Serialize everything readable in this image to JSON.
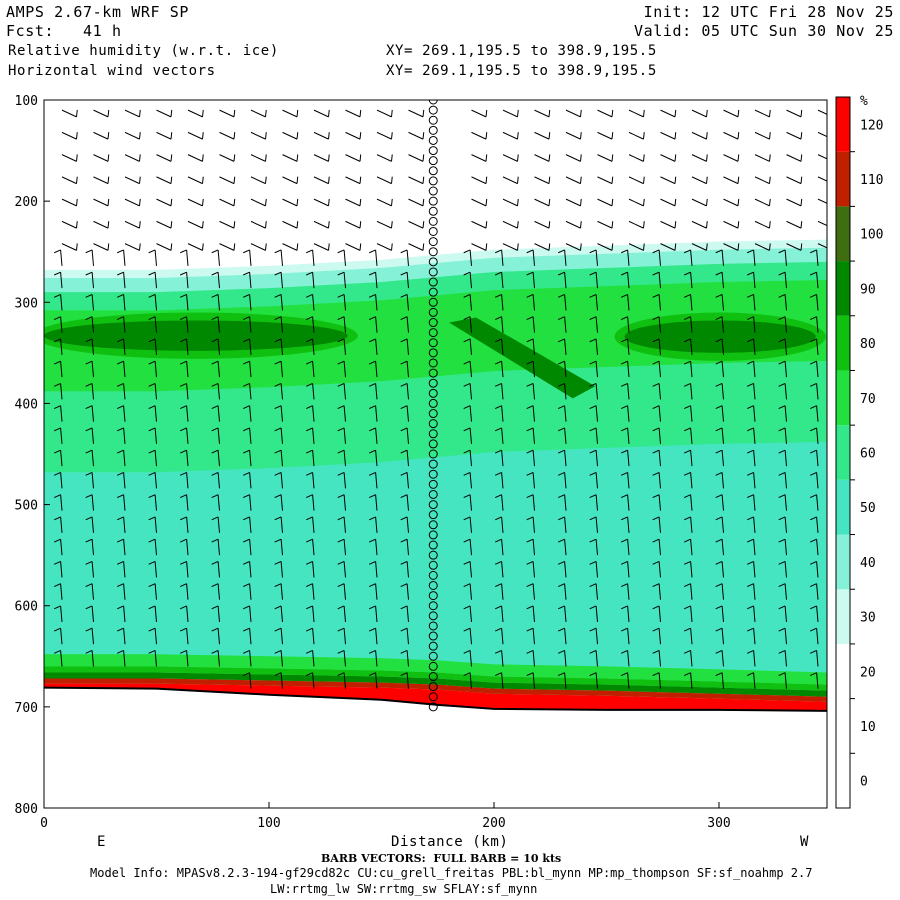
{
  "header": {
    "model": "AMPS 2.67-km WRF SP",
    "fcst": "Fcst:   41 h",
    "init": "Init: 12 UTC Fri 28 Nov 25",
    "valid": "Valid: 05 UTC Sun 30 Nov 25",
    "field1": "Relative humidity (w.r.t. ice)",
    "field2": "Horizontal wind vectors",
    "xy1": "XY= 269.1,195.5 to 398.9,195.5",
    "xy2": "XY= 269.1,195.5 to 398.9,195.5"
  },
  "footer": {
    "barb_note": "BARB VECTORS:  FULL BARB = 10 kts",
    "model_info": "Model Info: MPASv8.2.3-194-gf29cd82c CU:cu_grell_freitas PBL:bl_mynn MP:mp_thompson SF:sf_noahmp 2.7",
    "model_info2": "LW:rrtmg_lw SW:rrtmg_sw SFLAY:sf_mynn"
  },
  "chart_data": {
    "type": "heatmap",
    "title": "Relative humidity (w.r.t. ice)",
    "xlabel": "Distance (km)",
    "ylabel": "",
    "xlim": [
      0,
      348
    ],
    "ylim": [
      800,
      100
    ],
    "x_ticks": [
      0,
      100,
      200,
      300
    ],
    "y_ticks": [
      100,
      200,
      300,
      400,
      500,
      600,
      700,
      800
    ],
    "x_end_labels": {
      "left": "E",
      "right": "W"
    },
    "colorbar": {
      "unit": "%",
      "levels": [
        0,
        10,
        20,
        30,
        40,
        50,
        60,
        70,
        80,
        90,
        100,
        110,
        120
      ],
      "colors": [
        "#ffffff",
        "#ffffff",
        "#ffffff",
        "#ccfaf0",
        "#85f2d8",
        "#45e5c2",
        "#33e88a",
        "#22e040",
        "#10c010",
        "#008800",
        "#3e6e10",
        "#c02000",
        "#ff0000"
      ]
    },
    "terrain": {
      "x": [
        0,
        50,
        100,
        150,
        175,
        200,
        250,
        300,
        348
      ],
      "p": [
        681,
        682,
        688,
        693,
        698,
        702,
        703,
        703,
        704
      ]
    },
    "rh_layers": [
      {
        "name": "moist-layer-top",
        "level": 30,
        "p_top": [
          268,
          268,
          264,
          258,
          253,
          248,
          244,
          240,
          238
        ]
      },
      {
        "name": "upper-maximum-west",
        "level": 90,
        "x": [
          0,
          135
        ],
        "p": [
          318,
          348
        ]
      },
      {
        "name": "upper-maximum-east",
        "level": 90,
        "x": [
          258,
          343
        ],
        "p": [
          318,
          350
        ]
      },
      {
        "name": "diagonal-band",
        "level": 90,
        "x": [
          180,
          245
        ],
        "p": [
          320,
          395
        ]
      },
      {
        "name": "surface-moist-layer",
        "level": 120,
        "p_top": [
          660,
          660,
          662,
          664,
          666,
          670,
          672,
          675,
          678
        ]
      }
    ],
    "wind_profile_marker": {
      "x": 173,
      "p_range": [
        100,
        700
      ],
      "calm": true
    }
  }
}
